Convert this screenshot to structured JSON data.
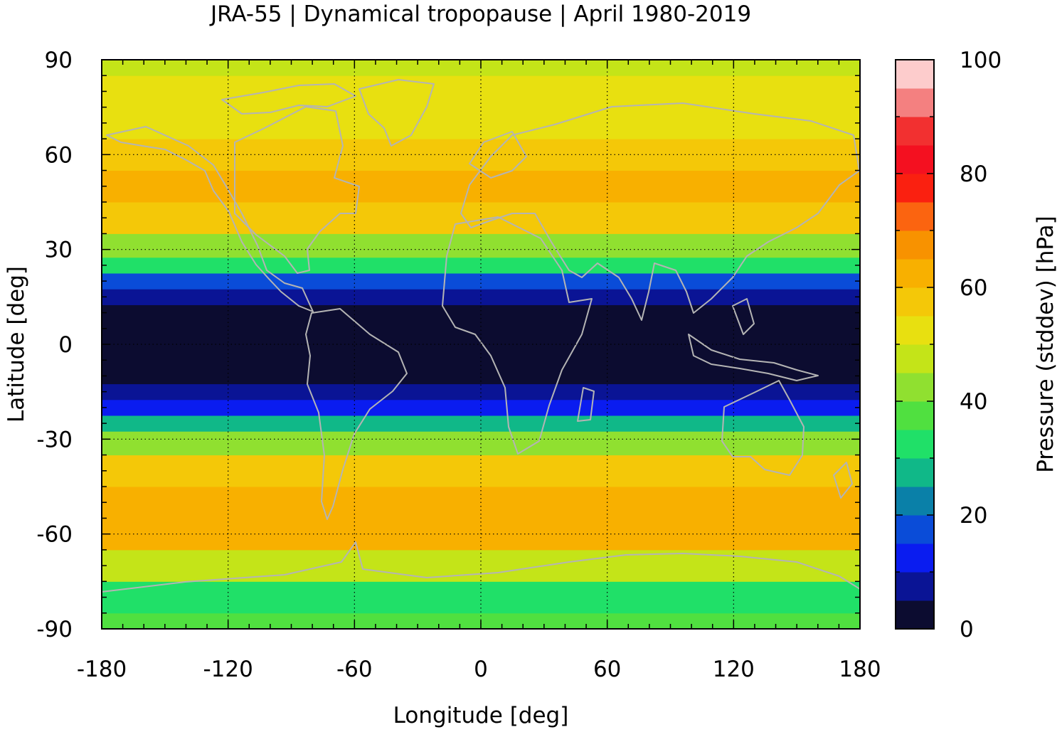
{
  "chart_data": {
    "type": "heatmap",
    "title": "JRA-55 | Dynamical tropopause | April 1980-2019",
    "xlabel": "Longitude [deg]",
    "ylabel": "Latitude [deg]",
    "xlim": [
      -180,
      180
    ],
    "ylim": [
      -90,
      90
    ],
    "xticks": [
      "-180",
      "-120",
      "-60",
      "0",
      "60",
      "120",
      "180"
    ],
    "yticks": [
      "90",
      "60",
      "30",
      "0",
      "-30",
      "-60",
      "-90"
    ],
    "grid": true,
    "overlay": "coastlines (grey)",
    "colorbar": {
      "label": "Pressure (stddev) [hPa]",
      "range": [
        0,
        100
      ],
      "ticks": [
        "0",
        "20",
        "40",
        "60",
        "80",
        "100"
      ],
      "levels": [
        0,
        5,
        10,
        15,
        20,
        25,
        30,
        35,
        40,
        45,
        50,
        55,
        60,
        65,
        70,
        75,
        80,
        85,
        90,
        95,
        100
      ],
      "colors": [
        "#0c0c30",
        "#0a1495",
        "#0a1cf0",
        "#0a4cd8",
        "#0a80a8",
        "#10b888",
        "#20e068",
        "#50e040",
        "#90e030",
        "#c4e418",
        "#e8e010",
        "#f4c808",
        "#f8b000",
        "#f89200",
        "#fb6410",
        "#fa2010",
        "#f41020",
        "#f23030",
        "#f48080",
        "#fdcccc"
      ]
    },
    "values_by_latitude": {
      "latitude": [
        -90,
        -80,
        -70,
        -60,
        -50,
        -40,
        -30,
        -25,
        -20,
        -15,
        -10,
        0,
        10,
        15,
        20,
        25,
        30,
        40,
        50,
        60,
        70,
        80,
        90
      ],
      "stddev_hPa": [
        37,
        34,
        45,
        60,
        64,
        55,
        40,
        28,
        12,
        5,
        3,
        2,
        3,
        7,
        15,
        30,
        42,
        55,
        62,
        58,
        52,
        50,
        48
      ]
    }
  }
}
